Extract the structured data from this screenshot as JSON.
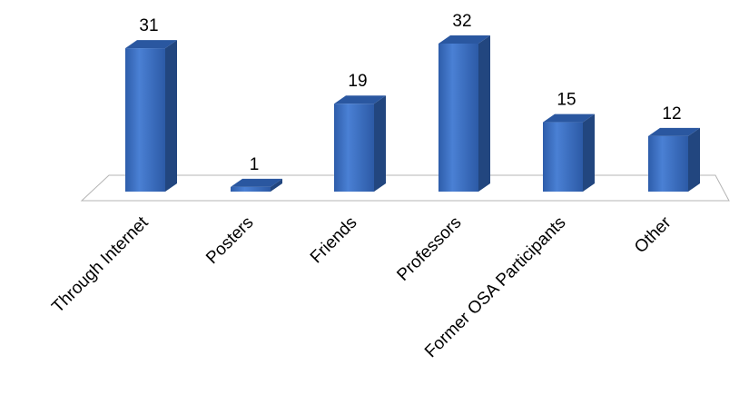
{
  "chart_data": {
    "type": "bar",
    "title": "",
    "xlabel": "",
    "ylabel": "",
    "categories": [
      "Through Internet",
      "Posters",
      "Friends",
      "Professors",
      "Former OSA Participants",
      "Other"
    ],
    "values": [
      31,
      1,
      19,
      32,
      15,
      12
    ],
    "data_labels": [
      "31",
      "1",
      "19",
      "32",
      "15",
      "12"
    ],
    "ylim": [
      0,
      32
    ],
    "grid": false,
    "legend": "none",
    "style": "3d-column"
  },
  "colors": {
    "bar_front": "#3a6fc4",
    "bar_side": "#22467f",
    "bar_top": "#2a57a0",
    "floor_fill": "#ffffff",
    "floor_stroke": "#b4b4b4"
  }
}
